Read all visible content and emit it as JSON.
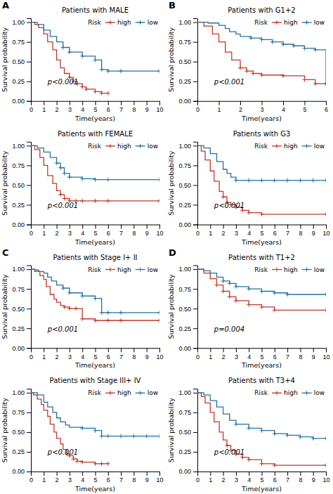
{
  "chart_data": [
    {
      "type": "line",
      "title": "Patients with MALE",
      "x_label": "Time(years)",
      "y_label": "Survival probability",
      "annotations": [
        "A",
        "p<0.001"
      ],
      "legend": "upper right",
      "legend_title": "Risk",
      "grid": false,
      "xlim": [
        0,
        10
      ],
      "xticks": [
        0,
        1,
        2,
        3,
        4,
        5,
        6,
        7,
        8,
        9,
        10
      ],
      "ylim": [
        0,
        1.05
      ],
      "yticks": [
        {
          "value": 0,
          "label": "0.00"
        },
        0.25,
        {
          "value": 0.5,
          "label": "0.50"
        },
        0.75,
        {
          "value": 1,
          "label": "1.00"
        }
      ],
      "series": [
        {
          "name": "high",
          "color": "#c0392b",
          "marker": "plus",
          "line_style": "step",
          "x": [
            0,
            0.3,
            0.6,
            1.0,
            1.3,
            1.7,
            2.0,
            2.3,
            2.6,
            3.0,
            3.3,
            3.6,
            4.0,
            4.3,
            5.0,
            5.5,
            6.0
          ],
          "values": [
            1.0,
            0.97,
            0.93,
            0.85,
            0.75,
            0.65,
            0.52,
            0.42,
            0.35,
            0.3,
            0.25,
            0.22,
            0.18,
            0.15,
            0.12,
            0.1,
            0.1
          ]
        },
        {
          "name": "low",
          "color": "#2471a3",
          "marker": "plus",
          "line_style": "step",
          "x": [
            0,
            0.5,
            1.0,
            1.5,
            2.0,
            2.5,
            3.0,
            4.0,
            5.0,
            5.5,
            6.0,
            7.0,
            10.0
          ],
          "values": [
            1.0,
            0.97,
            0.9,
            0.82,
            0.75,
            0.68,
            0.62,
            0.57,
            0.52,
            0.4,
            0.38,
            0.38,
            0.38
          ]
        }
      ]
    },
    {
      "type": "line",
      "title": "Patients with FEMALE",
      "x_label": "Time(years)",
      "y_label": "Survival probability",
      "annotations": [
        "p<0.001"
      ],
      "legend": "upper right",
      "legend_title": "Risk",
      "grid": false,
      "xlim": [
        0,
        10
      ],
      "xticks": [
        0,
        1,
        2,
        3,
        4,
        5,
        6,
        7,
        8,
        9,
        10
      ],
      "ylim": [
        0,
        1.05
      ],
      "yticks": [
        {
          "value": 0,
          "label": "0.00"
        },
        0.25,
        {
          "value": 0.5,
          "label": "0.50"
        },
        0.75,
        {
          "value": 1,
          "label": "1.00"
        }
      ],
      "series": [
        {
          "name": "high",
          "color": "#c0392b",
          "marker": "plus",
          "line_style": "step",
          "x": [
            0,
            0.3,
            0.7,
            1.0,
            1.3,
            1.7,
            2.0,
            2.3,
            2.6,
            3.0,
            3.5,
            4.0,
            5.0,
            6.0,
            10.0
          ],
          "values": [
            1.0,
            0.95,
            0.85,
            0.75,
            0.62,
            0.52,
            0.43,
            0.38,
            0.33,
            0.3,
            0.3,
            0.3,
            0.3,
            0.3,
            0.3
          ]
        },
        {
          "name": "low",
          "color": "#2471a3",
          "marker": "plus",
          "line_style": "step",
          "x": [
            0,
            0.5,
            1.0,
            1.5,
            2.0,
            2.3,
            2.6,
            3.0,
            4.0,
            5.0,
            6.0,
            10.0
          ],
          "values": [
            1.0,
            0.97,
            0.92,
            0.85,
            0.78,
            0.72,
            0.65,
            0.6,
            0.58,
            0.57,
            0.57,
            0.57
          ]
        }
      ]
    },
    {
      "type": "line",
      "title": "Patients with G1+2",
      "x_label": "Time(years)",
      "y_label": "Survival probability",
      "annotations": [
        "B",
        "p<0.001"
      ],
      "legend": "upper right",
      "legend_title": "Risk",
      "grid": false,
      "xlim": [
        0,
        6
      ],
      "xticks": [
        0,
        1,
        2,
        3,
        4,
        5,
        6
      ],
      "ylim": [
        0,
        1.05
      ],
      "yticks": [
        {
          "value": 0,
          "label": "0.00"
        },
        0.25,
        {
          "value": 0.5,
          "label": "0.50"
        },
        0.75,
        {
          "value": 1,
          "label": "1.00"
        }
      ],
      "series": [
        {
          "name": "high",
          "color": "#c0392b",
          "marker": "plus",
          "line_style": "step",
          "x": [
            0,
            0.3,
            0.7,
            1.0,
            1.3,
            1.6,
            2.0,
            2.3,
            2.6,
            3.0,
            4.0,
            5.0,
            5.5,
            6.0
          ],
          "values": [
            1.0,
            0.95,
            0.85,
            0.75,
            0.62,
            0.52,
            0.42,
            0.38,
            0.35,
            0.33,
            0.32,
            0.27,
            0.22,
            0.22
          ]
        },
        {
          "name": "low",
          "color": "#2471a3",
          "marker": "plus",
          "line_style": "step",
          "x": [
            0,
            0.5,
            1.0,
            1.3,
            1.5,
            1.8,
            2.0,
            2.5,
            3.0,
            3.5,
            4.0,
            4.5,
            5.0,
            5.5,
            6.0
          ],
          "values": [
            1.0,
            0.99,
            0.96,
            0.92,
            0.88,
            0.85,
            0.82,
            0.8,
            0.78,
            0.75,
            0.72,
            0.7,
            0.67,
            0.65,
            0.22
          ]
        }
      ]
    },
    {
      "type": "line",
      "title": "Patients with G3",
      "x_label": "Time(years)",
      "y_label": "Survival probability",
      "annotations": [
        "p<0.001"
      ],
      "legend": "upper right",
      "legend_title": "Risk",
      "grid": false,
      "xlim": [
        0,
        10
      ],
      "xticks": [
        0,
        1,
        2,
        3,
        4,
        5,
        6,
        7,
        8,
        9,
        10
      ],
      "ylim": [
        0,
        1.05
      ],
      "yticks": [
        {
          "value": 0,
          "label": "0.00"
        },
        0.25,
        {
          "value": 0.5,
          "label": "0.50"
        },
        0.75,
        {
          "value": 1,
          "label": "1.00"
        }
      ],
      "series": [
        {
          "name": "high",
          "color": "#c0392b",
          "marker": "plus",
          "line_style": "step",
          "x": [
            0,
            0.3,
            0.6,
            1.0,
            1.3,
            1.7,
            2.0,
            2.3,
            2.6,
            3.0,
            3.5,
            4.0,
            5.0,
            10.0
          ],
          "values": [
            1.0,
            0.93,
            0.82,
            0.68,
            0.55,
            0.42,
            0.35,
            0.28,
            0.25,
            0.22,
            0.18,
            0.15,
            0.13,
            0.13
          ]
        },
        {
          "name": "low",
          "color": "#2471a3",
          "marker": "plus",
          "line_style": "step",
          "x": [
            0,
            0.5,
            1.0,
            1.5,
            2.0,
            2.3,
            2.6,
            3.0,
            4.0,
            5.0,
            6.0,
            7.0,
            8.0,
            9.0,
            10.0
          ],
          "values": [
            1.0,
            0.97,
            0.9,
            0.8,
            0.7,
            0.65,
            0.6,
            0.56,
            0.56,
            0.56,
            0.56,
            0.56,
            0.56,
            0.56,
            0.56
          ]
        }
      ]
    },
    {
      "type": "line",
      "title": "Patients with Stage I+ II",
      "x_label": "Time(years)",
      "y_label": "Survival probability",
      "annotations": [
        "C",
        "p<0.001"
      ],
      "legend": "upper right",
      "legend_title": "Risk",
      "grid": false,
      "xlim": [
        0,
        10
      ],
      "xticks": [
        0,
        1,
        2,
        3,
        4,
        5,
        6,
        7,
        8,
        9,
        10
      ],
      "ylim": [
        0,
        1.05
      ],
      "yticks": [
        {
          "value": 0,
          "label": "0.00"
        },
        0.25,
        {
          "value": 0.5,
          "label": "0.50"
        },
        0.75,
        {
          "value": 1,
          "label": "1.00"
        }
      ],
      "series": [
        {
          "name": "high",
          "color": "#c0392b",
          "marker": "plus",
          "line_style": "step",
          "x": [
            0,
            0.3,
            0.7,
            1.0,
            1.2,
            1.5,
            1.8,
            2.0,
            2.3,
            2.6,
            3.0,
            3.5,
            4.0,
            5.0,
            6.0,
            7.0,
            10.0
          ],
          "values": [
            1.0,
            0.97,
            0.92,
            0.87,
            0.78,
            0.68,
            0.62,
            0.58,
            0.54,
            0.52,
            0.5,
            0.5,
            0.37,
            0.35,
            0.35,
            0.35,
            0.35
          ]
        },
        {
          "name": "low",
          "color": "#2471a3",
          "marker": "plus",
          "line_style": "step",
          "x": [
            0,
            0.3,
            0.6,
            1.0,
            1.3,
            1.6,
            2.0,
            2.5,
            3.0,
            4.0,
            5.0,
            5.5,
            6.0,
            7.0,
            10.0
          ],
          "values": [
            1.0,
            0.99,
            0.97,
            0.95,
            0.9,
            0.85,
            0.8,
            0.76,
            0.7,
            0.66,
            0.63,
            0.45,
            0.45,
            0.45,
            0.45
          ]
        }
      ]
    },
    {
      "type": "line",
      "title": "Patients with Stage III+ IV",
      "x_label": "Time(years)",
      "y_label": "Survival probability",
      "annotations": [
        "p<0.001"
      ],
      "legend": "upper right",
      "legend_title": "Risk",
      "grid": false,
      "xlim": [
        0,
        10
      ],
      "xticks": [
        0,
        1,
        2,
        3,
        4,
        5,
        6,
        7,
        8,
        9,
        10
      ],
      "ylim": [
        0,
        1.05
      ],
      "yticks": [
        {
          "value": 0,
          "label": "0.00"
        },
        0.25,
        {
          "value": 0.5,
          "label": "0.50"
        },
        0.75,
        {
          "value": 1,
          "label": "1.00"
        }
      ],
      "series": [
        {
          "name": "high",
          "color": "#c0392b",
          "marker": "plus",
          "line_style": "step",
          "x": [
            0,
            0.2,
            0.5,
            0.8,
            1.0,
            1.3,
            1.5,
            1.8,
            2.0,
            2.3,
            2.5,
            2.8,
            3.0,
            3.3,
            3.6,
            4.0,
            5.0,
            5.5,
            6.0
          ],
          "values": [
            1.0,
            0.97,
            0.92,
            0.85,
            0.78,
            0.7,
            0.6,
            0.5,
            0.42,
            0.35,
            0.28,
            0.22,
            0.2,
            0.16,
            0.13,
            0.12,
            0.1,
            0.1,
            0.1
          ]
        },
        {
          "name": "low",
          "color": "#2471a3",
          "marker": "plus",
          "line_style": "step",
          "x": [
            0,
            0.5,
            1.0,
            1.3,
            1.7,
            2.0,
            2.3,
            2.7,
            3.0,
            4.0,
            5.0,
            5.5,
            6.0,
            7.0,
            8.0,
            9.0,
            10.0
          ],
          "values": [
            1.0,
            0.97,
            0.88,
            0.82,
            0.75,
            0.68,
            0.63,
            0.59,
            0.56,
            0.55,
            0.52,
            0.45,
            0.45,
            0.45,
            0.45,
            0.45,
            0.45
          ]
        }
      ]
    },
    {
      "type": "line",
      "title": "Patients with T1+2",
      "x_label": "Time(years)",
      "y_label": "Survival probability",
      "annotations": [
        "D",
        "p=0.004"
      ],
      "legend": "upper right",
      "legend_title": "Risk",
      "grid": false,
      "xlim": [
        0,
        10
      ],
      "xticks": [
        0,
        1,
        2,
        3,
        4,
        5,
        6,
        7,
        8,
        9,
        10
      ],
      "ylim": [
        0,
        1.05
      ],
      "yticks": [
        {
          "value": 0,
          "label": "0.00"
        },
        0.25,
        {
          "value": 0.5,
          "label": "0.50"
        },
        0.75,
        {
          "value": 1,
          "label": "1.00"
        }
      ],
      "series": [
        {
          "name": "high",
          "color": "#c0392b",
          "marker": "plus",
          "line_style": "step",
          "x": [
            0,
            0.5,
            1.0,
            1.5,
            2.0,
            2.5,
            3.0,
            4.0,
            5.0,
            6.0,
            10.0
          ],
          "values": [
            1.0,
            0.95,
            0.88,
            0.8,
            0.72,
            0.65,
            0.6,
            0.55,
            0.52,
            0.48,
            0.48
          ]
        },
        {
          "name": "low",
          "color": "#2471a3",
          "marker": "plus",
          "line_style": "step",
          "x": [
            0,
            0.5,
            1.0,
            1.5,
            2.0,
            2.5,
            3.0,
            4.0,
            5.0,
            6.0,
            7.0,
            10.0
          ],
          "values": [
            1.0,
            0.98,
            0.95,
            0.9,
            0.85,
            0.82,
            0.78,
            0.75,
            0.72,
            0.7,
            0.68,
            0.68
          ]
        }
      ]
    },
    {
      "type": "line",
      "title": "Patients with T3+4",
      "x_label": "Time(years)",
      "y_label": "Survival probability",
      "annotations": [
        "p<0.001"
      ],
      "legend": "upper right",
      "legend_title": "Risk",
      "grid": false,
      "xlim": [
        0,
        10
      ],
      "xticks": [
        0,
        1,
        2,
        3,
        4,
        5,
        6,
        7,
        8,
        9,
        10
      ],
      "ylim": [
        0,
        1.05
      ],
      "yticks": [
        {
          "value": 0,
          "label": "0.00"
        },
        0.25,
        {
          "value": 0.5,
          "label": "0.50"
        },
        0.75,
        {
          "value": 1,
          "label": "1.00"
        }
      ],
      "series": [
        {
          "name": "high",
          "color": "#c0392b",
          "marker": "plus",
          "line_style": "step",
          "x": [
            0,
            0.3,
            0.6,
            1.0,
            1.3,
            1.7,
            2.0,
            2.3,
            2.6,
            3.0,
            3.5,
            4.0,
            5.0,
            6.0,
            10.0
          ],
          "values": [
            1.0,
            0.95,
            0.87,
            0.75,
            0.63,
            0.5,
            0.4,
            0.33,
            0.27,
            0.22,
            0.18,
            0.15,
            0.1,
            0.08,
            0.08
          ]
        },
        {
          "name": "low",
          "color": "#2471a3",
          "marker": "plus",
          "line_style": "step",
          "x": [
            0,
            0.5,
            1.0,
            1.5,
            2.0,
            2.5,
            3.0,
            4.0,
            5.0,
            6.0,
            7.0,
            8.0,
            9.0,
            10.0
          ],
          "values": [
            1.0,
            0.97,
            0.9,
            0.82,
            0.73,
            0.65,
            0.6,
            0.55,
            0.52,
            0.48,
            0.46,
            0.44,
            0.42,
            0.42
          ]
        }
      ]
    }
  ]
}
